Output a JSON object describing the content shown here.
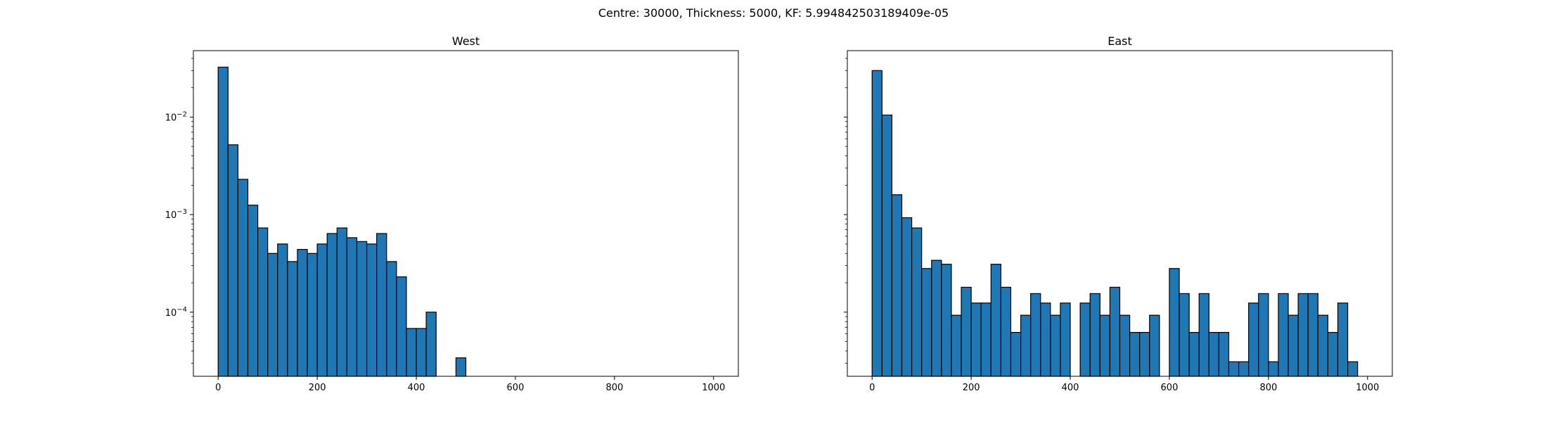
{
  "figure": {
    "suptitle": "Centre: 30000, Thickness: 5000, KF: 5.994842503189409e-05"
  },
  "chart_data": [
    {
      "type": "bar",
      "subtype": "histogram",
      "title": "West",
      "xlabel": "",
      "ylabel": "",
      "yscale": "log",
      "shared_y": true,
      "xlim": [
        -50,
        1050
      ],
      "ylim": [
        2.2e-05,
        0.048
      ],
      "xticks": [
        0,
        200,
        400,
        600,
        800,
        1000
      ],
      "xtick_labels": [
        "0",
        "200",
        "400",
        "600",
        "800",
        "1000"
      ],
      "yticks": [
        0.0001,
        0.001,
        0.01
      ],
      "bar_color": "#1f77b4",
      "edge_color": "#000000",
      "bin_width": 20,
      "bin_starts": [
        0,
        20,
        40,
        60,
        80,
        100,
        120,
        140,
        160,
        180,
        200,
        220,
        240,
        260,
        280,
        300,
        320,
        340,
        360,
        380,
        400,
        420,
        440,
        460,
        480,
        500,
        520,
        540,
        560,
        580,
        600,
        620,
        640,
        660,
        680,
        700,
        720,
        740,
        760,
        780,
        800,
        820,
        840,
        860,
        880,
        900,
        920,
        940,
        960,
        980
      ],
      "values": [
        0.0325,
        0.0052,
        0.0023,
        0.00125,
        0.00073,
        0.0004,
        0.0005,
        0.00033,
        0.00044,
        0.0004,
        0.0005,
        0.00064,
        0.00073,
        0.00058,
        0.00053,
        0.0005,
        0.00064,
        0.00033,
        0.00023,
        6.8e-05,
        6.8e-05,
        0.0001,
        0,
        0,
        3.4e-05,
        0,
        0,
        0,
        0,
        0,
        0,
        0,
        0,
        0,
        0,
        0,
        0,
        0,
        0,
        0,
        0,
        0,
        0,
        0,
        0,
        0,
        0,
        0,
        0,
        0
      ]
    },
    {
      "type": "bar",
      "subtype": "histogram",
      "title": "East",
      "xlabel": "",
      "ylabel": "",
      "yscale": "log",
      "shared_y": true,
      "xlim": [
        -50,
        1050
      ],
      "ylim": [
        2.2e-05,
        0.048
      ],
      "xticks": [
        0,
        200,
        400,
        600,
        800,
        1000
      ],
      "xtick_labels": [
        "0",
        "200",
        "400",
        "600",
        "800",
        "1000"
      ],
      "yticks": [
        0.0001,
        0.001,
        0.01
      ],
      "bar_color": "#1f77b4",
      "edge_color": "#000000",
      "bin_width": 20,
      "bin_starts": [
        0,
        20,
        40,
        60,
        80,
        100,
        120,
        140,
        160,
        180,
        200,
        220,
        240,
        260,
        280,
        300,
        320,
        340,
        360,
        380,
        400,
        420,
        440,
        460,
        480,
        500,
        520,
        540,
        560,
        580,
        600,
        620,
        640,
        660,
        680,
        700,
        720,
        740,
        760,
        780,
        800,
        820,
        840,
        860,
        880,
        900,
        920,
        940,
        960,
        980
      ],
      "values": [
        0.03,
        0.0105,
        0.0016,
        0.00093,
        0.00073,
        0.00028,
        0.00034,
        0.00031,
        9.3e-05,
        0.00018,
        0.000124,
        0.000124,
        0.00031,
        0.00018,
        6.2e-05,
        9.3e-05,
        0.000155,
        0.000124,
        9.3e-05,
        0.000124,
        0,
        0.000124,
        0.000155,
        9.3e-05,
        0.00018,
        9.3e-05,
        6.2e-05,
        6.2e-05,
        9.3e-05,
        0,
        0.00028,
        0.000155,
        6.2e-05,
        0.000155,
        6.2e-05,
        6.2e-05,
        3.1e-05,
        3.1e-05,
        0.000124,
        0.000155,
        3.1e-05,
        0.000155,
        9.3e-05,
        0.000155,
        0.000155,
        9.3e-05,
        6.2e-05,
        0.000124,
        3.1e-05,
        0
      ]
    }
  ],
  "log_tick_labels": {
    "10^-2": {
      "base": "10",
      "exp": "−2"
    },
    "10^-3": {
      "base": "10",
      "exp": "−3"
    },
    "10^-4": {
      "base": "10",
      "exp": "−4"
    }
  }
}
